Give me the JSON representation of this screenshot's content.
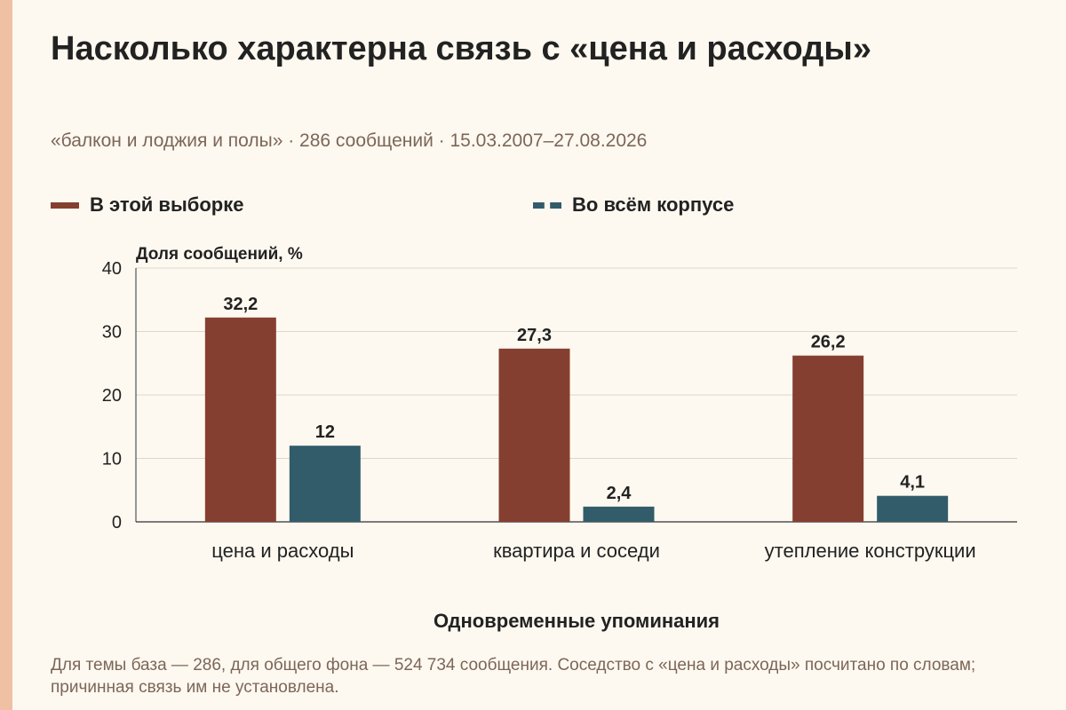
{
  "title": "Насколько характерна связь с «цена и расходы»",
  "subtitle": "«балкон и лоджия и полы» · 286 сообщений · 15.03.2007–27.08.2026",
  "note": "Для темы база — 286, для общего фона — 524 734 сообщения. Соседство с «цена и расходы» посчитано по словам; причинная связь им не установлена.",
  "colors": {
    "sample": "#853f30",
    "corpus": "#325c6a",
    "accent": "#efc0a4",
    "background": "#fdf9f0"
  },
  "chart_data": {
    "type": "bar",
    "ylabel": "Доля сообщений, %",
    "xlabel": "Одновременные упоминания",
    "ylim": [
      0,
      40
    ],
    "yticks": [
      0,
      10,
      20,
      30,
      40
    ],
    "grid": true,
    "legend_position": "top",
    "categories": [
      "цена и расходы",
      "квартира и соседи",
      "утепление конструкции"
    ],
    "series": [
      {
        "name": "В этой выборке",
        "values": [
          32.2,
          27.3,
          26.2
        ],
        "labels": [
          "32,2",
          "27,3",
          "26,2"
        ]
      },
      {
        "name": "Во всём корпусе",
        "values": [
          12,
          2.4,
          4.1
        ],
        "labels": [
          "12",
          "2,4",
          "4,1"
        ]
      }
    ]
  }
}
